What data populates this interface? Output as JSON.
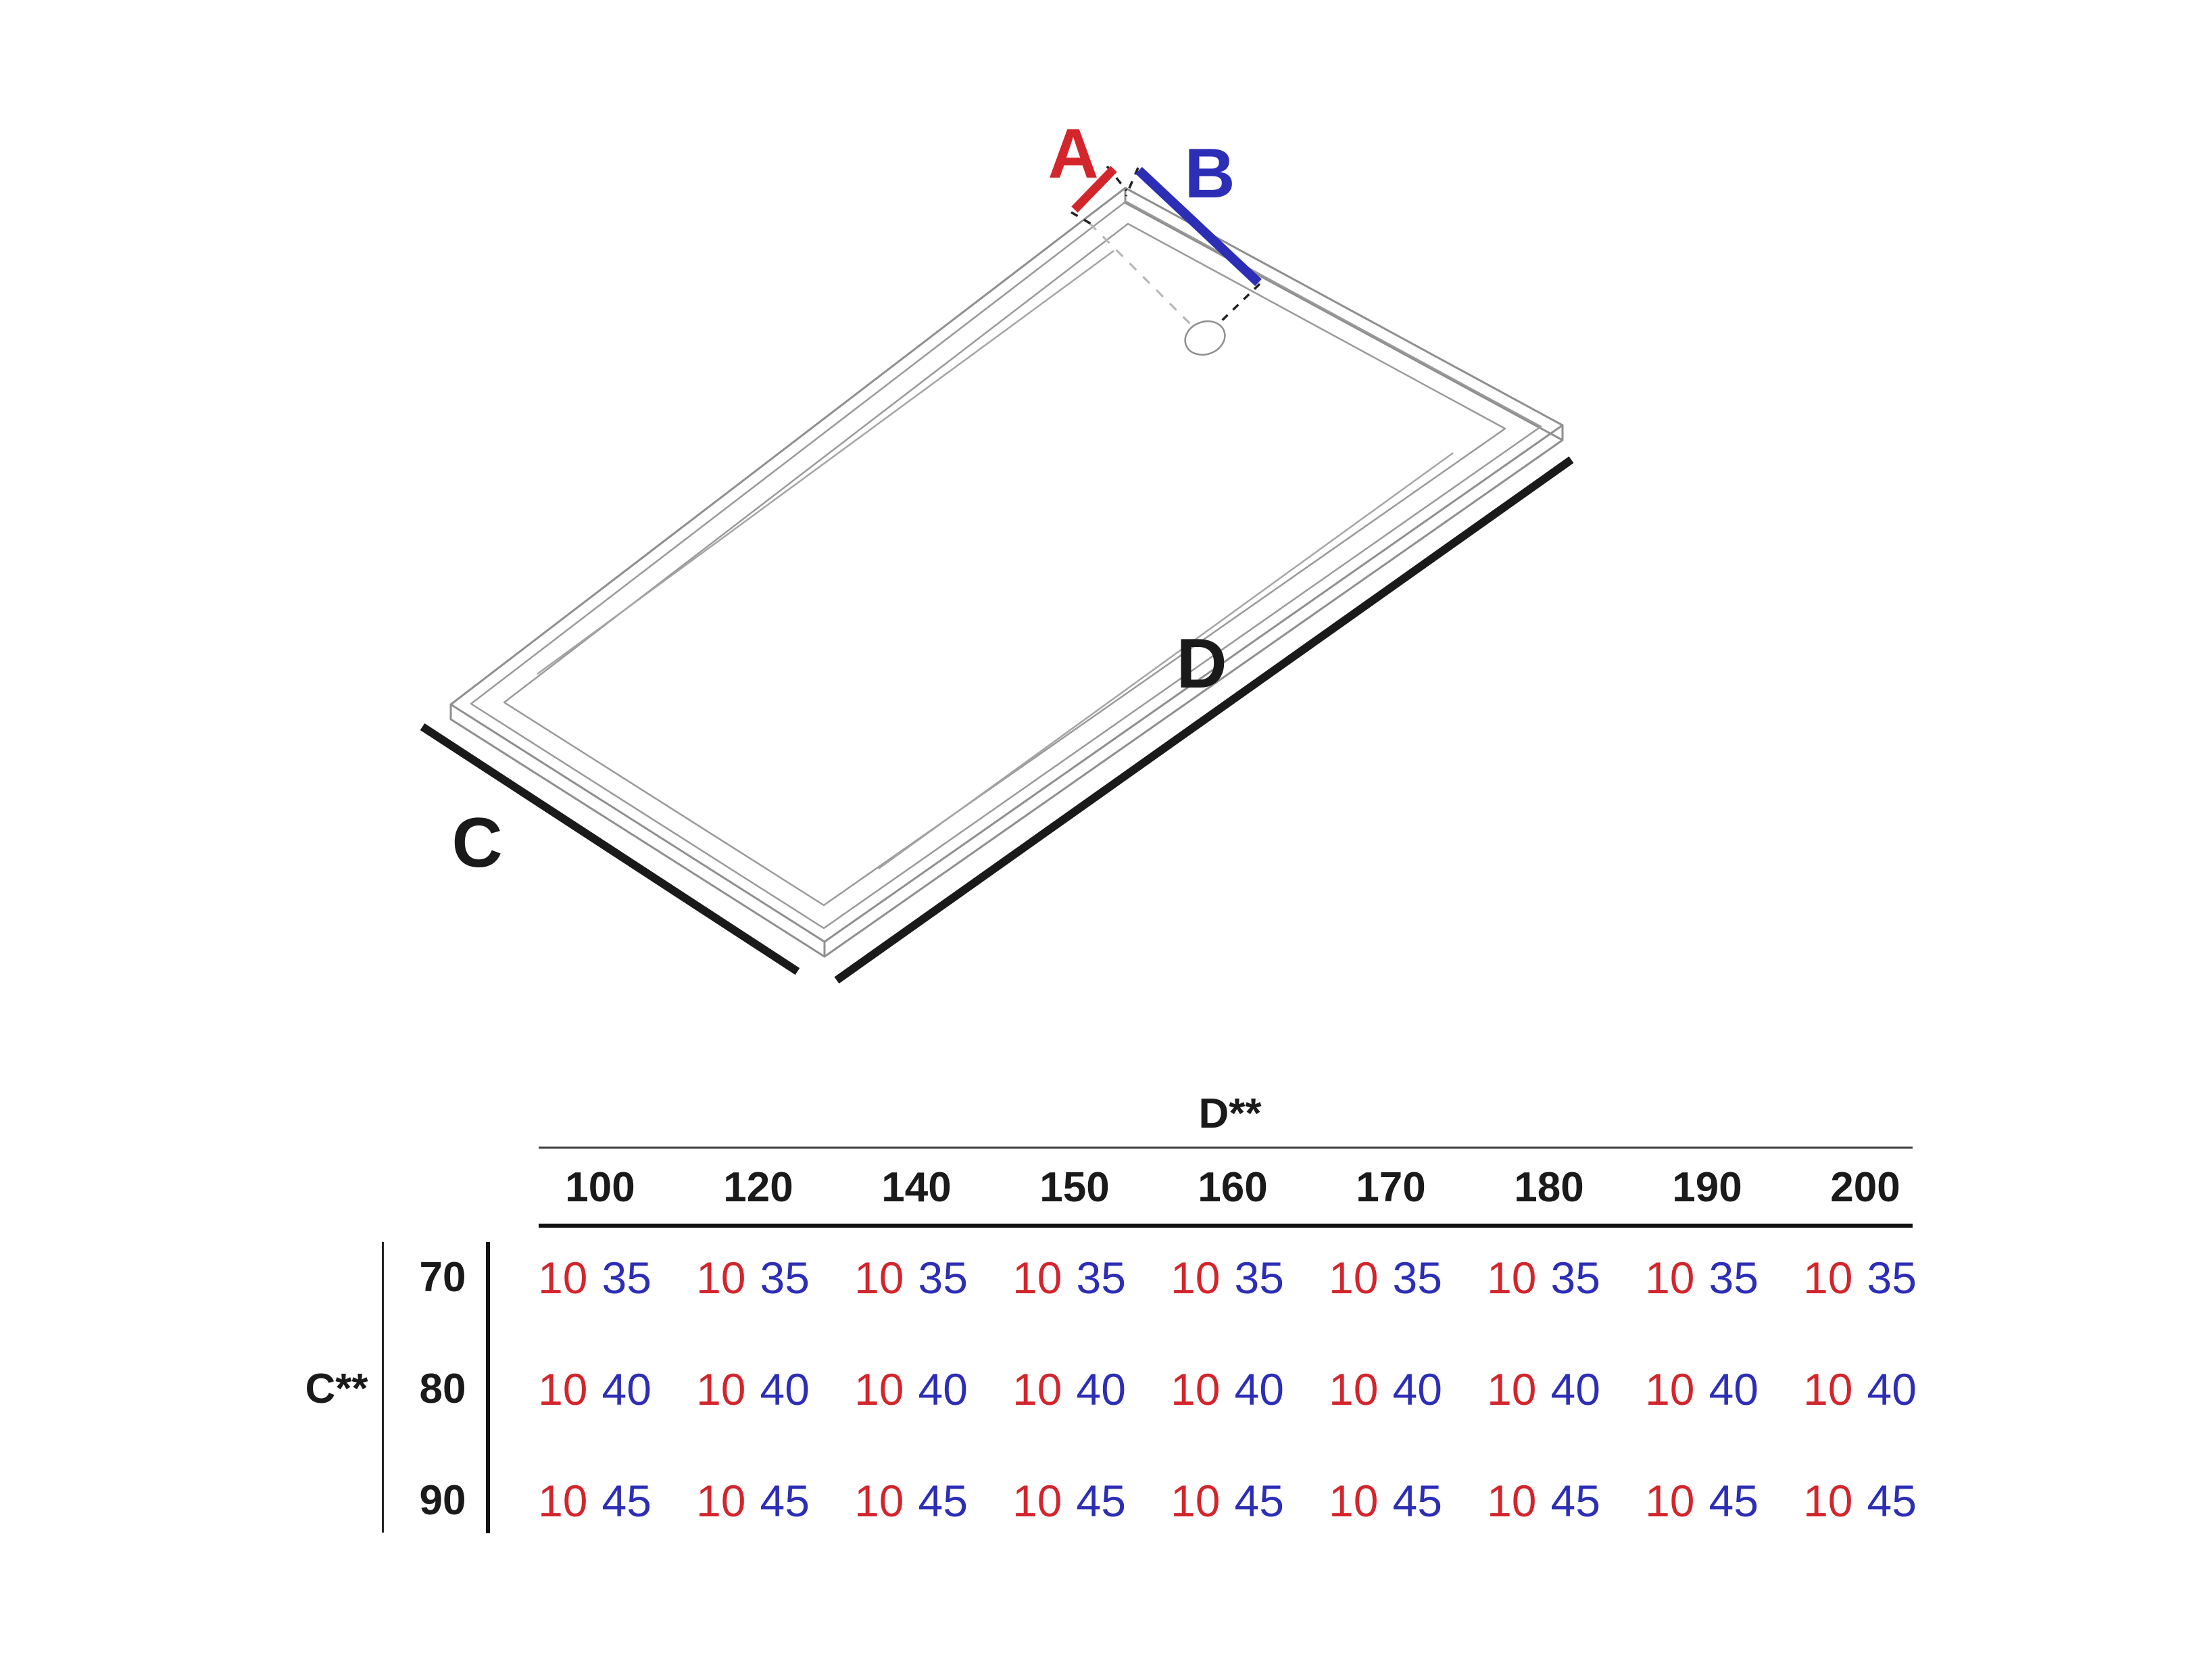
{
  "colors": {
    "red": "#d2262c",
    "blue": "#2c2eb6",
    "black": "#1a1a1a"
  },
  "diagram": {
    "labels": {
      "a": "A",
      "b": "B",
      "c": "C",
      "d": "D"
    }
  },
  "table": {
    "col_group_label": "D**",
    "row_group_label": "C**",
    "columns": [
      "100",
      "120",
      "140",
      "150",
      "160",
      "170",
      "180",
      "190",
      "200"
    ],
    "rows": [
      {
        "label": "70",
        "pair": {
          "first": "10",
          "second": "35"
        }
      },
      {
        "label": "80",
        "pair": {
          "first": "10",
          "second": "40"
        }
      },
      {
        "label": "90",
        "pair": {
          "first": "10",
          "second": "45"
        }
      }
    ]
  }
}
